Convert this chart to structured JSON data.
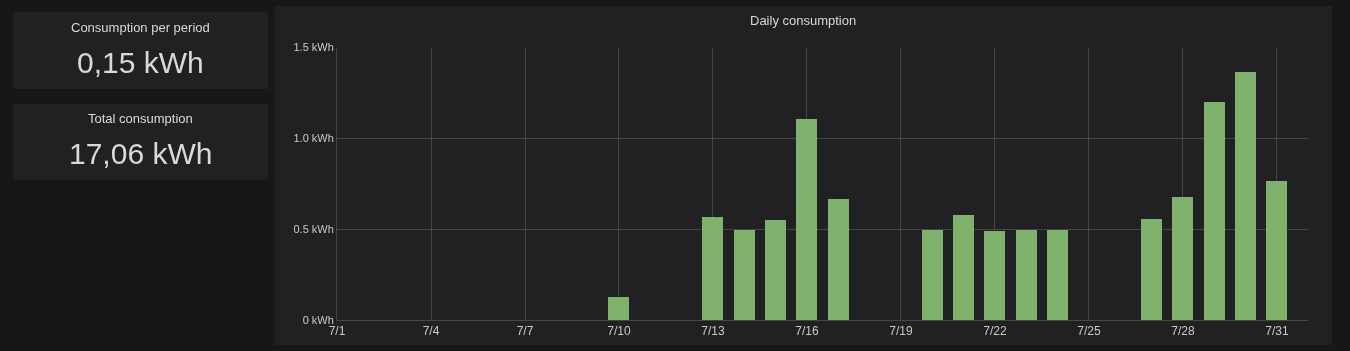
{
  "chart_data": [
    {
      "type": "other",
      "title": "Consumption per period",
      "annotations": [
        "0,15 kWh"
      ]
    },
    {
      "type": "other",
      "title": "Total consumption",
      "annotations": [
        "17,06 kWh"
      ]
    },
    {
      "type": "bar",
      "title": "Daily consumption",
      "color": "#7eb26d",
      "x": [
        "--07-10",
        "--07-13",
        "--07-14",
        "--07-15",
        "--07-16",
        "--07-17",
        "--07-20",
        "--07-21",
        "--07-22",
        "--07-23",
        "--07-24",
        "--07-27",
        "--07-28",
        "--07-29",
        "--07-30",
        "--07-31"
      ],
      "values": [
        0.13,
        0.57,
        0.5,
        0.55,
        1.11,
        0.67,
        0.5,
        0.58,
        0.49,
        0.5,
        0.5,
        0.56,
        0.68,
        1.2,
        1.37,
        0.77
      ],
      "xlim": [
        "--07-01",
        "--08-01"
      ],
      "xticks": [
        {
          "value": "--07-01",
          "label": "7/1"
        },
        {
          "value": "--07-04",
          "label": "7/4"
        },
        {
          "value": "--07-07",
          "label": "7/7"
        },
        {
          "value": "--07-10",
          "label": "7/10"
        },
        {
          "value": "--07-13",
          "label": "7/13"
        },
        {
          "value": "--07-16",
          "label": "7/16"
        },
        {
          "value": "--07-19",
          "label": "7/19"
        },
        {
          "value": "--07-22",
          "label": "7/22"
        },
        {
          "value": "--07-25",
          "label": "7/25"
        },
        {
          "value": "--07-28",
          "label": "7/28"
        },
        {
          "value": "--07-31",
          "label": "7/31"
        }
      ],
      "ylim": [
        0,
        1.5
      ],
      "yticks": [
        {
          "value": 0,
          "label": "0 kWh"
        },
        {
          "value": 0.5,
          "label": "0.5 kWh"
        },
        {
          "value": 1.0,
          "label": "1.0 kWh"
        },
        {
          "value": 1.5,
          "label": "1.5 kWh"
        }
      ],
      "grid": true,
      "legend": false
    }
  ]
}
